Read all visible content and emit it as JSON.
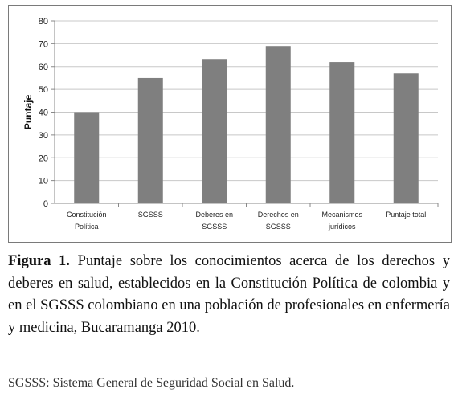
{
  "chart_data": {
    "type": "bar",
    "categories": [
      [
        "Constitución",
        "Política"
      ],
      [
        "SGSSS"
      ],
      [
        "Deberes en",
        "SGSSS"
      ],
      [
        "Derechos en",
        "SGSSS"
      ],
      [
        "Mecanismos",
        "jurídicos"
      ],
      [
        "Puntaje total"
      ]
    ],
    "values": [
      40,
      55,
      63,
      69,
      62,
      57
    ],
    "ylabel": "Puntaje",
    "xlabel": "",
    "ylim": [
      0,
      80
    ],
    "yticks": [
      "0",
      "10",
      "20",
      "30",
      "40",
      "50",
      "60",
      "70",
      "80"
    ],
    "grid": true,
    "legend": "none",
    "bar_color": "#7f7f7f",
    "grid_color": "#c8c8c8"
  },
  "caption": {
    "label": "Figura 1.",
    "text": "Puntaje sobre los conocimientos acerca de los derechos y deberes en salud, establecidos en la Constitución Política de colombia y en el SGSSS colombiano en una población de profesionales en enfermería y medicina, Bucaramanga 2010."
  },
  "footnote": "SGSSS: Sistema General de Seguridad Social en Salud."
}
